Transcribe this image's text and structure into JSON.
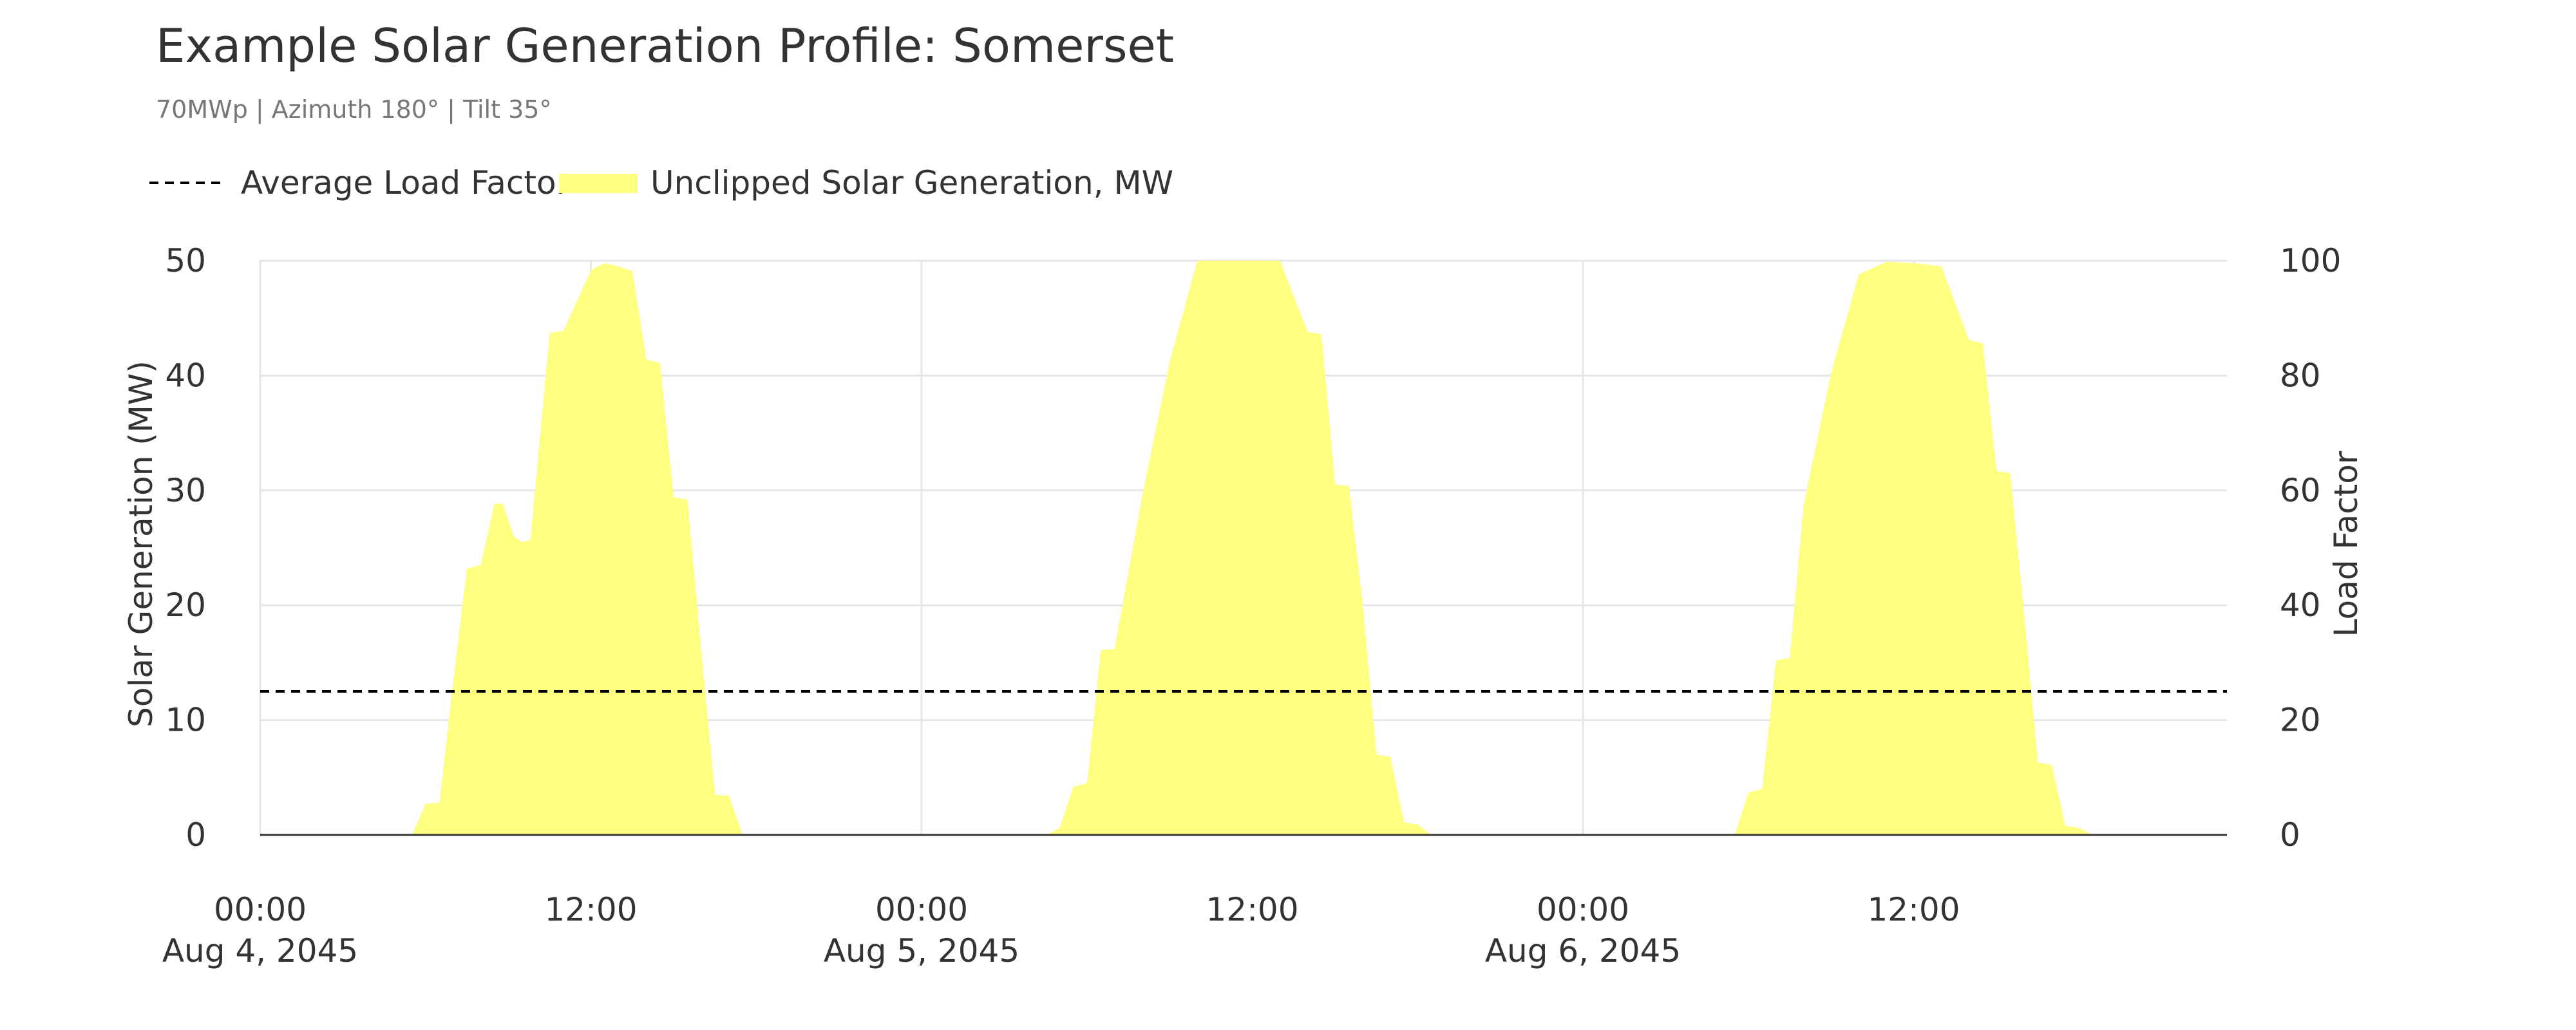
{
  "title": "Example Solar Generation Profile: Somerset",
  "subtitle": "70MWp | Azimuth 180° | Tilt 35°",
  "legend": [
    {
      "label": "Average Load Factor",
      "style": "dashed",
      "color": "#000000"
    },
    {
      "label": "Unclipped Solar Generation, MW",
      "style": "area",
      "color": "#ffff80"
    }
  ],
  "chart_data": {
    "type": "area",
    "title": "Example Solar Generation Profile: Somerset",
    "subtitle": "70MWp | Azimuth 180° | Tilt 35°",
    "ylabel": "Solar Generation (MW)",
    "y2label": "Load Factor",
    "ylim": [
      0,
      50
    ],
    "y2lim": [
      0,
      100
    ],
    "y_ticks": [
      "0",
      "10",
      "20",
      "30",
      "40",
      "50"
    ],
    "y2_ticks": [
      "0",
      "20",
      "40",
      "60",
      "80",
      "100"
    ],
    "x_ticks": [
      {
        "hour": 0,
        "time": "00:00",
        "date": "Aug 4, 2045"
      },
      {
        "hour": 12,
        "time": "12:00",
        "date": ""
      },
      {
        "hour": 24,
        "time": "00:00",
        "date": "Aug 5, 2045"
      },
      {
        "hour": 36,
        "time": "12:00",
        "date": ""
      },
      {
        "hour": 48,
        "time": "00:00",
        "date": "Aug 6, 2045"
      },
      {
        "hour": 60,
        "time": "12:00",
        "date": ""
      }
    ],
    "x_range_hours": [
      0,
      71.5
    ],
    "grid": true,
    "legend_position": "top-left",
    "avg_load_factor_mw": 12.5,
    "series": [
      {
        "name": "Unclipped Solar Generation, MW",
        "color": "#ffff80",
        "points": [
          [
            0,
            0
          ],
          [
            5.5,
            0
          ],
          [
            6.0,
            2.7
          ],
          [
            6.5,
            2.8
          ],
          [
            7.0,
            13.4
          ],
          [
            7.5,
            23.2
          ],
          [
            8.0,
            23.5
          ],
          [
            8.5,
            28.9
          ],
          [
            8.8,
            28.8
          ],
          [
            9.2,
            26.0
          ],
          [
            9.5,
            25.5
          ],
          [
            9.8,
            25.7
          ],
          [
            10.5,
            43.7
          ],
          [
            11.0,
            43.9
          ],
          [
            12.0,
            49.2
          ],
          [
            12.5,
            49.8
          ],
          [
            13.0,
            49.5
          ],
          [
            13.5,
            49.1
          ],
          [
            14.0,
            41.4
          ],
          [
            14.5,
            41.1
          ],
          [
            15.0,
            29.4
          ],
          [
            15.5,
            29.2
          ],
          [
            16.0,
            15.9
          ],
          [
            16.5,
            3.5
          ],
          [
            17.0,
            3.4
          ],
          [
            17.5,
            0
          ],
          [
            28.5,
            0
          ],
          [
            29.0,
            0.6
          ],
          [
            29.5,
            4.2
          ],
          [
            30.0,
            4.5
          ],
          [
            30.5,
            16.1
          ],
          [
            31.0,
            16.2
          ],
          [
            32.0,
            29.5
          ],
          [
            33.0,
            41.2
          ],
          [
            34.0,
            50.0
          ],
          [
            35.0,
            50.0
          ],
          [
            36.0,
            50.0
          ],
          [
            37.0,
            50.0
          ],
          [
            38.0,
            43.8
          ],
          [
            38.5,
            43.6
          ],
          [
            39.0,
            30.5
          ],
          [
            39.5,
            30.4
          ],
          [
            40.0,
            20.1
          ],
          [
            40.5,
            7.0
          ],
          [
            41.0,
            6.8
          ],
          [
            41.5,
            1.1
          ],
          [
            42.0,
            0.9
          ],
          [
            42.5,
            0
          ],
          [
            53.5,
            0
          ],
          [
            54.0,
            3.7
          ],
          [
            54.5,
            4.0
          ],
          [
            55.0,
            15.2
          ],
          [
            55.5,
            15.4
          ],
          [
            56.0,
            28.7
          ],
          [
            57.0,
            40.2
          ],
          [
            58.0,
            48.8
          ],
          [
            59.0,
            49.9
          ],
          [
            60.0,
            49.8
          ],
          [
            61.0,
            49.5
          ],
          [
            62.0,
            43.1
          ],
          [
            62.5,
            42.8
          ],
          [
            63.0,
            31.7
          ],
          [
            63.5,
            31.5
          ],
          [
            64.0,
            19.2
          ],
          [
            64.5,
            6.3
          ],
          [
            65.0,
            6.1
          ],
          [
            65.5,
            0.8
          ],
          [
            66.0,
            0.6
          ],
          [
            66.5,
            0
          ],
          [
            71.5,
            0
          ]
        ]
      }
    ]
  }
}
